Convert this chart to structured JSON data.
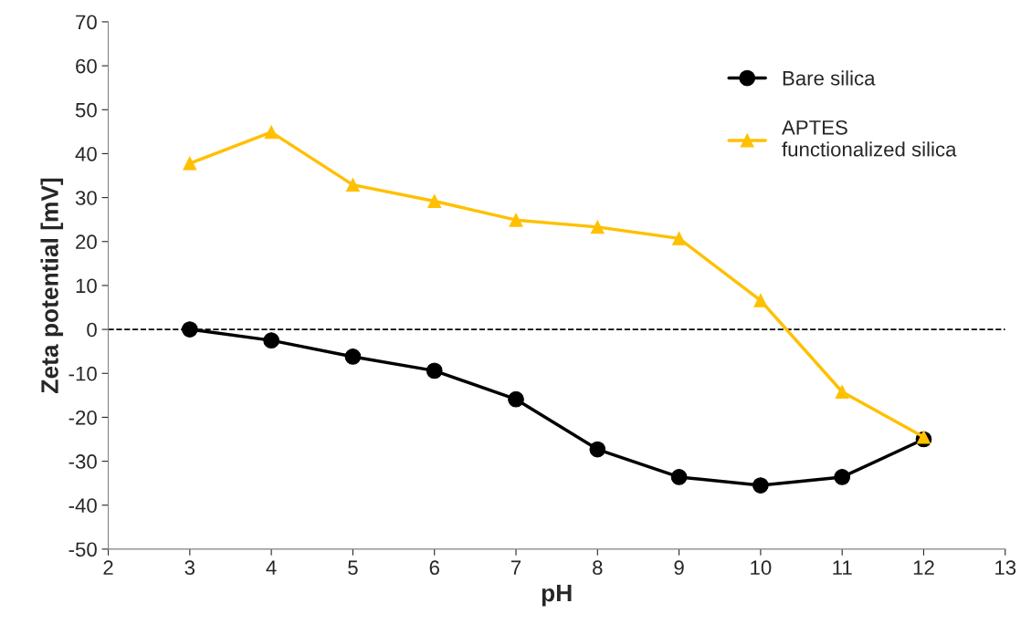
{
  "chart_data": {
    "type": "line",
    "xlabel": "pH",
    "ylabel": "Zeta potential [mV]",
    "x": [
      3,
      4,
      5,
      6,
      7,
      8,
      9,
      10,
      11,
      12
    ],
    "series": [
      {
        "name": "Bare silica",
        "color": "#000000",
        "marker": "circle",
        "values": [
          0,
          -2.5,
          -6.2,
          -9.4,
          -15.9,
          -27.3,
          -33.6,
          -35.5,
          -33.6,
          -25
        ]
      },
      {
        "name": "APTES\nfunctionalized silica",
        "color": "#ffc000",
        "marker": "triangle",
        "values": [
          37.8,
          44.9,
          32.9,
          29.2,
          24.9,
          23.3,
          20.7,
          6.6,
          -14.2,
          -24.5
        ]
      }
    ],
    "xlim": [
      2,
      13
    ],
    "xticks": [
      2,
      3,
      4,
      5,
      6,
      7,
      8,
      9,
      10,
      11,
      12,
      13
    ],
    "ylim": [
      -50,
      70
    ],
    "yticks": [
      -50,
      -40,
      -30,
      -20,
      -10,
      0,
      10,
      20,
      30,
      40,
      50,
      60,
      70
    ],
    "ref_lines": [
      {
        "axis": "y",
        "value": 0,
        "color": "#000000",
        "line_style": "dashed"
      }
    ],
    "grid": false,
    "legend": "top right"
  }
}
